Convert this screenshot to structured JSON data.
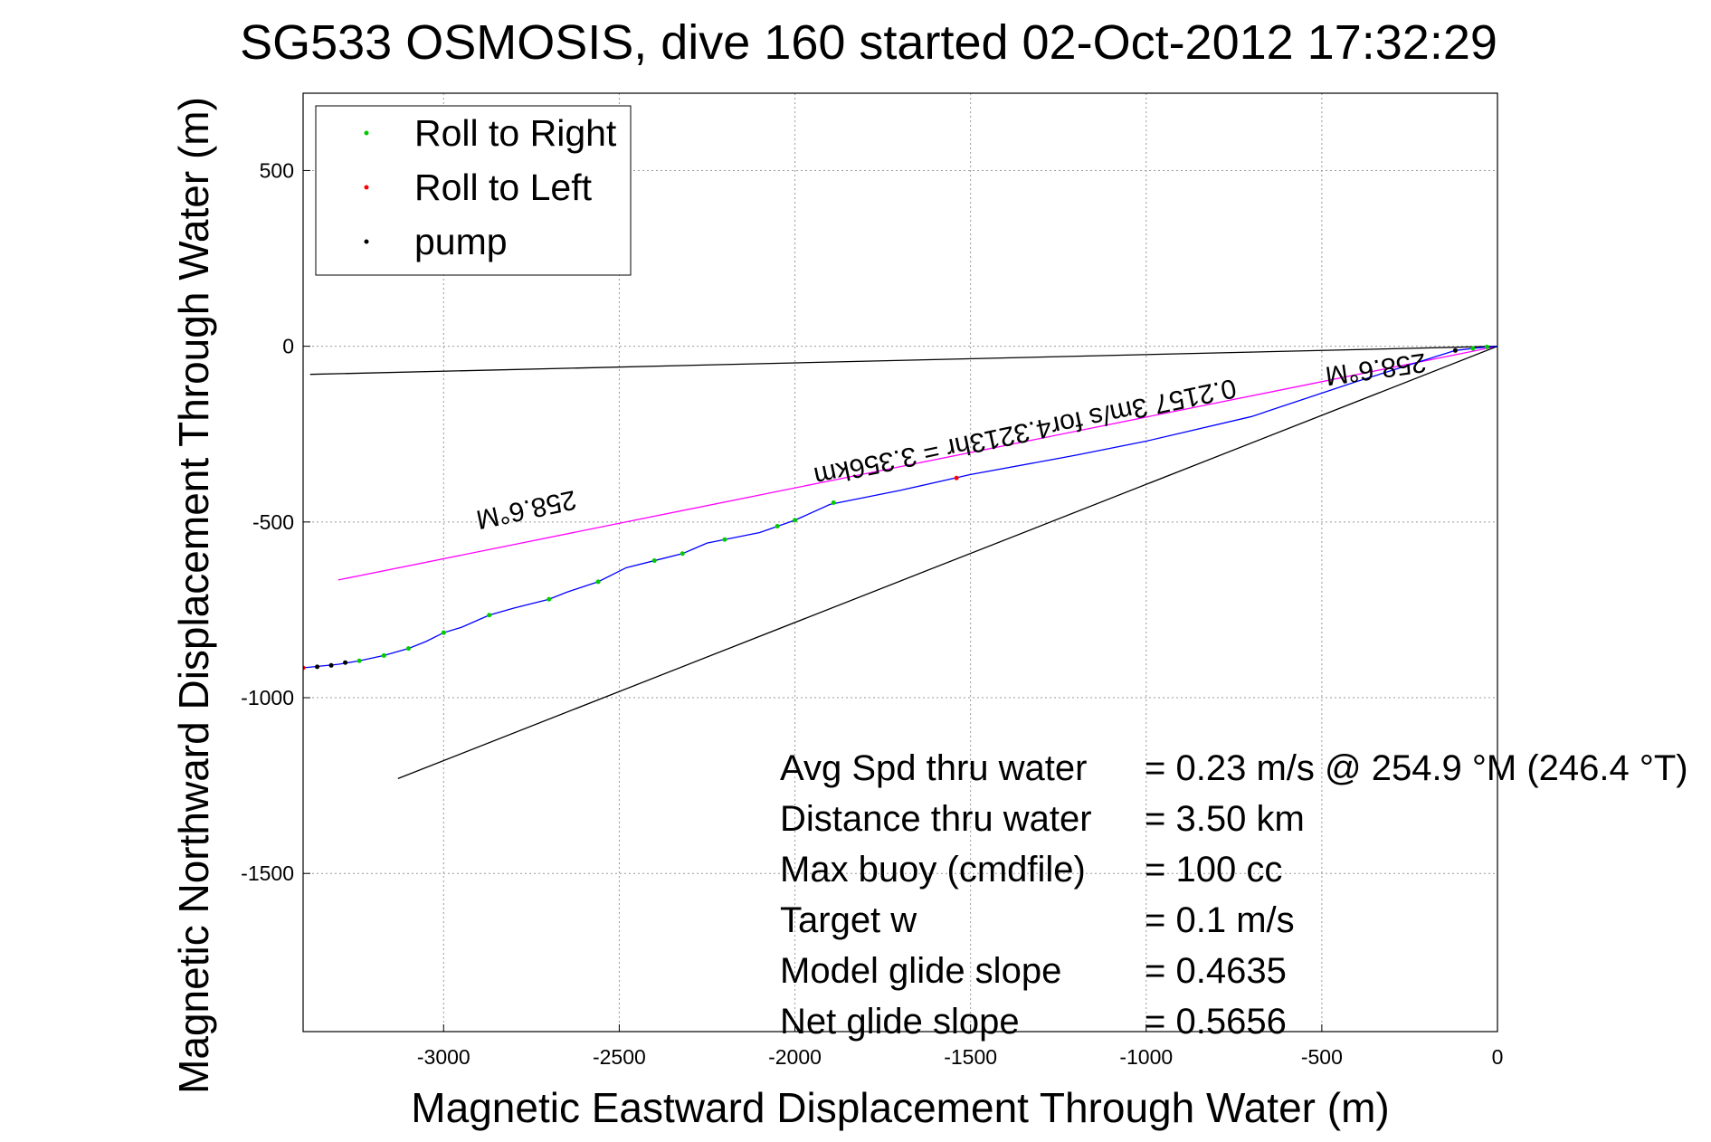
{
  "chart_data": {
    "type": "line",
    "title": "SG533 OSMOSIS, dive 160 started 02-Oct-2012 17:32:29",
    "xlabel": "Magnetic Eastward Displacement Through Water (m)",
    "ylabel": "Magnetic Northward Displacement Through Water (m)",
    "xlim": [
      -3400,
      0
    ],
    "ylim": [
      -1950,
      720
    ],
    "xticks": [
      -3000,
      -2500,
      -2000,
      -1500,
      -1000,
      -500,
      0
    ],
    "yticks": [
      500,
      0,
      -500,
      -1000,
      -1500
    ],
    "grid": true,
    "legend_position": "top-left",
    "legend": [
      {
        "label": "Roll to Right",
        "color": "#00cc00"
      },
      {
        "label": "Roll to Left",
        "color": "#ff0000"
      },
      {
        "label": "pump",
        "color": "#000000"
      }
    ],
    "track": {
      "color": "#0000ff",
      "points": [
        [
          0,
          0
        ],
        [
          -60,
          -5
        ],
        [
          -120,
          -12
        ],
        [
          -400,
          -100
        ],
        [
          -700,
          -200
        ],
        [
          -1000,
          -270
        ],
        [
          -1200,
          -310
        ],
        [
          -1500,
          -365
        ],
        [
          -1700,
          -410
        ],
        [
          -1900,
          -450
        ],
        [
          -2000,
          -495
        ],
        [
          -2100,
          -530
        ],
        [
          -2200,
          -550
        ],
        [
          -2250,
          -560
        ],
        [
          -2320,
          -590
        ],
        [
          -2400,
          -610
        ],
        [
          -2480,
          -630
        ],
        [
          -2560,
          -670
        ],
        [
          -2650,
          -700
        ],
        [
          -2700,
          -720
        ],
        [
          -2800,
          -745
        ],
        [
          -2870,
          -765
        ],
        [
          -2950,
          -800
        ],
        [
          -3000,
          -815
        ],
        [
          -3050,
          -840
        ],
        [
          -3100,
          -860
        ],
        [
          -3170,
          -880
        ],
        [
          -3240,
          -895
        ],
        [
          -3300,
          -905
        ],
        [
          -3400,
          -915
        ]
      ]
    },
    "roll_right_points": [
      [
        -30,
        -2
      ],
      [
        -70,
        -6
      ],
      [
        -1890,
        -445
      ],
      [
        -2000,
        -495
      ],
      [
        -2050,
        -512
      ],
      [
        -2200,
        -550
      ],
      [
        -2320,
        -590
      ],
      [
        -2400,
        -610
      ],
      [
        -2560,
        -670
      ],
      [
        -2700,
        -720
      ],
      [
        -2870,
        -765
      ],
      [
        -3000,
        -815
      ],
      [
        -3100,
        -860
      ],
      [
        -3170,
        -880
      ],
      [
        -3240,
        -895
      ]
    ],
    "roll_left_points": [
      [
        -1540,
        -375
      ],
      [
        -3400,
        -915
      ]
    ],
    "pump_points": [
      [
        -120,
        -12
      ],
      [
        -3280,
        -900
      ],
      [
        -3320,
        -908
      ],
      [
        -3360,
        -912
      ]
    ],
    "reference_lines": [
      {
        "name": "heading-line",
        "color": "#ff00ff",
        "points": [
          [
            0,
            0
          ],
          [
            -3300,
            -665
          ]
        ]
      },
      {
        "name": "upper-black-line",
        "color": "#000000",
        "points": [
          [
            0,
            0
          ],
          [
            -3380,
            -80
          ]
        ]
      },
      {
        "name": "lower-black-line",
        "color": "#000000",
        "points": [
          [
            0,
            0
          ],
          [
            -3130,
            -1230
          ]
        ]
      }
    ],
    "rotated_labels": [
      {
        "text": "258.6°M",
        "x": -2770,
        "y": -440,
        "angle": 168
      },
      {
        "text": "258.6°M",
        "x": -350,
        "y": -40,
        "angle": 172
      },
      {
        "text": "0.2157 3m/s for4.3213hr = 3.356km",
        "x": -1350,
        "y": -220,
        "angle": 168
      }
    ],
    "annotations": [
      {
        "label": "Avg Spd thru water",
        "value": "=  0.23 m/s @ 254.9 °M (246.4 °T)"
      },
      {
        "label": "Distance thru water",
        "value": "=  3.50 km"
      },
      {
        "label": "Max buoy (cmdfile)",
        "value": "= 100 cc"
      },
      {
        "label": "Target w",
        "value": "= 0.1 m/s"
      },
      {
        "label": "Model glide slope",
        "value": "= 0.4635"
      },
      {
        "label": "Net glide slope",
        "value": "= 0.5656"
      }
    ]
  }
}
